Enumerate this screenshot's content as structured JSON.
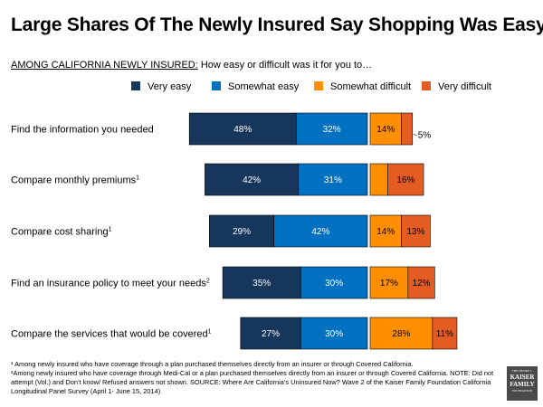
{
  "title": "Large Shares Of The Newly Insured Say Shopping Was Easy",
  "subtitle": {
    "lead": "AMONG CALIFORNIA NEWLY INSURED:",
    "question": " How easy or difficult was it for you to…"
  },
  "colors": {
    "very_easy": "#16365c",
    "somewhat_easy": "#0070c0",
    "somewhat_difficult": "#ff8f00",
    "very_difficult": "#e35d22"
  },
  "chart_data": {
    "type": "bar",
    "orientation": "horizontal-diverging",
    "categories": [
      {
        "label": "Find the information you needed",
        "sup": ""
      },
      {
        "label": "Compare monthly premiums",
        "sup": "1"
      },
      {
        "label": "Compare cost sharing",
        "sup": "1"
      },
      {
        "label": "Find an insurance policy to meet your needs",
        "sup": "2"
      },
      {
        "label": "Compare the services that would be covered",
        "sup": "1"
      }
    ],
    "series": [
      {
        "name": "Very easy",
        "values": [
          48,
          42,
          29,
          35,
          27
        ],
        "labels": [
          "48%",
          "42%",
          "29%",
          "35%",
          "27%"
        ]
      },
      {
        "name": "Somewhat easy",
        "values": [
          32,
          31,
          42,
          30,
          30
        ],
        "labels": [
          "32%",
          "31%",
          "42%",
          "30%",
          "30%"
        ]
      },
      {
        "name": "Somewhat difficult",
        "values": [
          14,
          8,
          14,
          17,
          28
        ],
        "labels": [
          "14%",
          "8%",
          "14%",
          "17%",
          "28%"
        ]
      },
      {
        "name": "Very difficult",
        "values": [
          5,
          16,
          13,
          12,
          11
        ],
        "labels": [
          "5%",
          "16%",
          "13%",
          "12%",
          "11%"
        ]
      }
    ],
    "legend": [
      "Very easy",
      "Somewhat easy",
      "Somewhat difficult",
      "Very difficult"
    ]
  },
  "footnotes": [
    "¹ Among newly insured who have coverage through a plan purchased themselves directly from an insurer or through Covered California.",
    "²Among newly insured who have coverage through Medi-Cal or a plan purchased themselves directly from an insurer or through Covered California.  NOTE: Did not attempt (Vol.) and Don’t know/ Refused answers not shown. SOURCE: Where Are California’s Uninsured Now? Wave 2 of the Kaiser Family Foundation California Longitudinal Panel Survey (April 1- June 15, 2014)"
  ],
  "logo": {
    "line1": "THE HENRY J.",
    "line2a": "KAISER",
    "line2b": "FAMILY",
    "line3": "FOUNDATION"
  }
}
